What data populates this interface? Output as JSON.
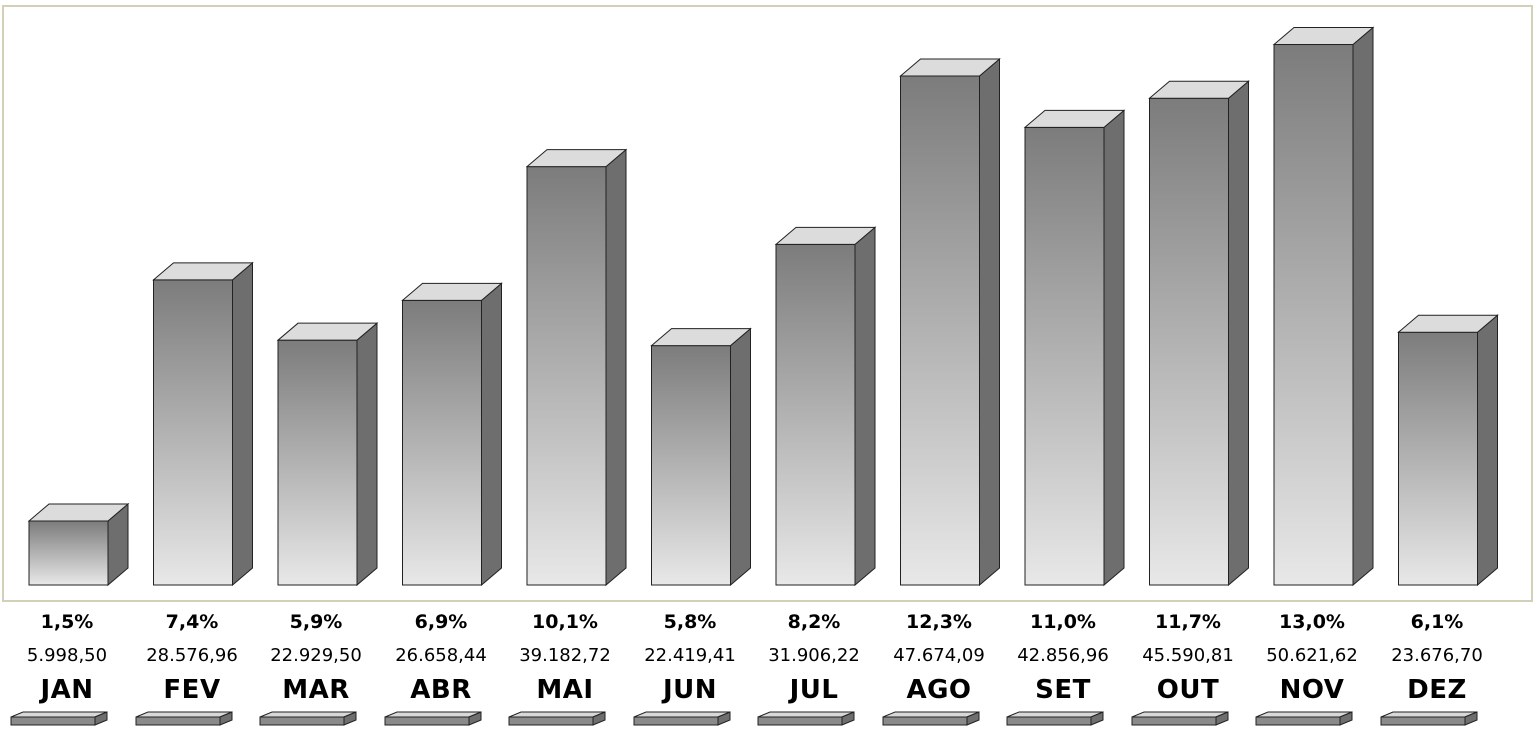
{
  "chart_data": {
    "type": "bar",
    "categories": [
      "JAN",
      "FEV",
      "MAR",
      "ABR",
      "MAI",
      "JUN",
      "JUL",
      "AGO",
      "SET",
      "OUT",
      "NOV",
      "DEZ"
    ],
    "values": [
      5998.5,
      28576.96,
      22929.5,
      26658.44,
      39182.72,
      22419.41,
      31906.22,
      47674.09,
      42856.96,
      45590.81,
      50621.62,
      23676.7
    ],
    "value_labels": [
      "5.998,50",
      "28.576,96",
      "22.929,50",
      "26.658,44",
      "39.182,72",
      "22.419,41",
      "31.906,22",
      "47.674,09",
      "42.856,96",
      "45.590,81",
      "50.621,62",
      "23.676,70"
    ],
    "percent_labels": [
      "1,5%",
      "7,4%",
      "5,9%",
      "6,9%",
      "10,1%",
      "5,8%",
      "8,2%",
      "12,3%",
      "11,0%",
      "11,7%",
      "13,0%",
      "6,1%"
    ],
    "ylim": [
      0,
      51700
    ],
    "grid": false,
    "title": "",
    "xlabel": "",
    "ylabel": ""
  },
  "colors": {
    "frame_border": "#d4d0b8",
    "bar_dark": "#7f7f7f",
    "bar_light": "#e6e6e6",
    "bar_side": "#6e6e6e",
    "bar_top": "#dcdcdc"
  }
}
